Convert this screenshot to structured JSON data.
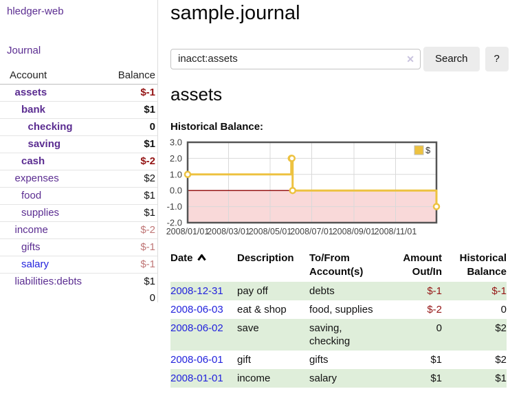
{
  "colors": {
    "link_purple": "#5b2d91",
    "link_blue": "#2222dd",
    "negative_strong": "#941414",
    "negative_soft": "#c07777",
    "zebra_green": "#dfeeda",
    "series_gold": "#edc240",
    "negative_region_pink": "#f9d9d9",
    "zero_line_red": "#8b0000"
  },
  "sidebar": {
    "app_title": "hledger-web",
    "nav": {
      "journal_label": "Journal"
    },
    "accounts_table": {
      "headers": {
        "account": "Account",
        "balance": "Balance"
      },
      "rows": [
        {
          "name": "assets",
          "depth": 1,
          "strong": true,
          "link": "purple",
          "balance": "$-1",
          "tone": "neg-strong"
        },
        {
          "name": "bank",
          "depth": 2,
          "strong": true,
          "link": "purple",
          "balance": "$1",
          "tone": "pos"
        },
        {
          "name": "checking",
          "depth": 3,
          "strong": true,
          "link": "purple",
          "balance": "0",
          "tone": "pos"
        },
        {
          "name": "saving",
          "depth": 3,
          "strong": true,
          "link": "purple",
          "balance": "$1",
          "tone": "pos"
        },
        {
          "name": "cash",
          "depth": 2,
          "strong": true,
          "link": "purple",
          "balance": "$-2",
          "tone": "neg-strong"
        },
        {
          "name": "expenses",
          "depth": 1,
          "strong": false,
          "link": "purple",
          "balance": "$2",
          "tone": "pos"
        },
        {
          "name": "food",
          "depth": 2,
          "strong": false,
          "link": "purple",
          "balance": "$1",
          "tone": "pos"
        },
        {
          "name": "supplies",
          "depth": 2,
          "strong": false,
          "link": "purple",
          "balance": "$1",
          "tone": "pos"
        },
        {
          "name": "income",
          "depth": 1,
          "strong": false,
          "link": "purple",
          "balance": "$-2",
          "tone": "neg-soft"
        },
        {
          "name": "gifts",
          "depth": 2,
          "strong": false,
          "link": "purple",
          "balance": "$-1",
          "tone": "neg-soft"
        },
        {
          "name": "salary",
          "depth": 2,
          "strong": false,
          "link": "blue",
          "balance": "$-1",
          "tone": "neg-soft"
        },
        {
          "name": "liabilities:debts",
          "depth": 1,
          "strong": false,
          "link": "purple",
          "balance": "$1",
          "tone": "pos"
        }
      ],
      "total": "0"
    }
  },
  "main": {
    "title": "sample.journal",
    "search": {
      "value": "inacct:assets",
      "clear_glyph": "✕",
      "search_label": "Search",
      "help_label": "?"
    },
    "account_heading": "assets",
    "chart_label": "Historical Balance:"
  },
  "chart_data": {
    "type": "line",
    "step": true,
    "title": "Historical Balance:",
    "ylim": [
      -2,
      3
    ],
    "y_ticks": [
      3.0,
      2.0,
      1.0,
      0.0,
      -1.0,
      -2.0
    ],
    "x_range": [
      "2008-01-01",
      "2008-12-31"
    ],
    "x_ticks": [
      "2008/01/01",
      "2008/03/01",
      "2008/05/01",
      "2008/07/01",
      "2008/09/01",
      "2008/11/01"
    ],
    "grid": true,
    "legend_position": "top-right",
    "negative_region_color": "#f9d9d9",
    "zero_line_color": "#8b0000",
    "series": [
      {
        "name": "$",
        "color": "#edc240",
        "points": [
          [
            "2008-01-01",
            1
          ],
          [
            "2008-06-01",
            2
          ],
          [
            "2008-06-02",
            2
          ],
          [
            "2008-06-03",
            0
          ],
          [
            "2008-12-31",
            -1
          ]
        ]
      }
    ]
  },
  "journal_table": {
    "headers": {
      "date": "Date",
      "description": "Description",
      "accounts": "To/From Account(s)",
      "amount": "Amount Out/In",
      "balance": "Historical Balance"
    },
    "rows": [
      {
        "date": "2008-12-31",
        "description": "pay off",
        "accounts": "debts",
        "amount": "$-1",
        "amount_tone": "neg",
        "balance": "$-1",
        "balance_tone": "neg"
      },
      {
        "date": "2008-06-03",
        "description": "eat & shop",
        "accounts": "food, supplies",
        "amount": "$-2",
        "amount_tone": "neg",
        "balance": "0",
        "balance_tone": "pos"
      },
      {
        "date": "2008-06-02",
        "description": "save",
        "accounts": "saving, checking",
        "amount": "0",
        "amount_tone": "pos",
        "balance": "$2",
        "balance_tone": "pos"
      },
      {
        "date": "2008-06-01",
        "description": "gift",
        "accounts": "gifts",
        "amount": "$1",
        "amount_tone": "pos",
        "balance": "$2",
        "balance_tone": "pos"
      },
      {
        "date": "2008-01-01",
        "description": "income",
        "accounts": "salary",
        "amount": "$1",
        "amount_tone": "pos",
        "balance": "$1",
        "balance_tone": "pos"
      }
    ]
  }
}
